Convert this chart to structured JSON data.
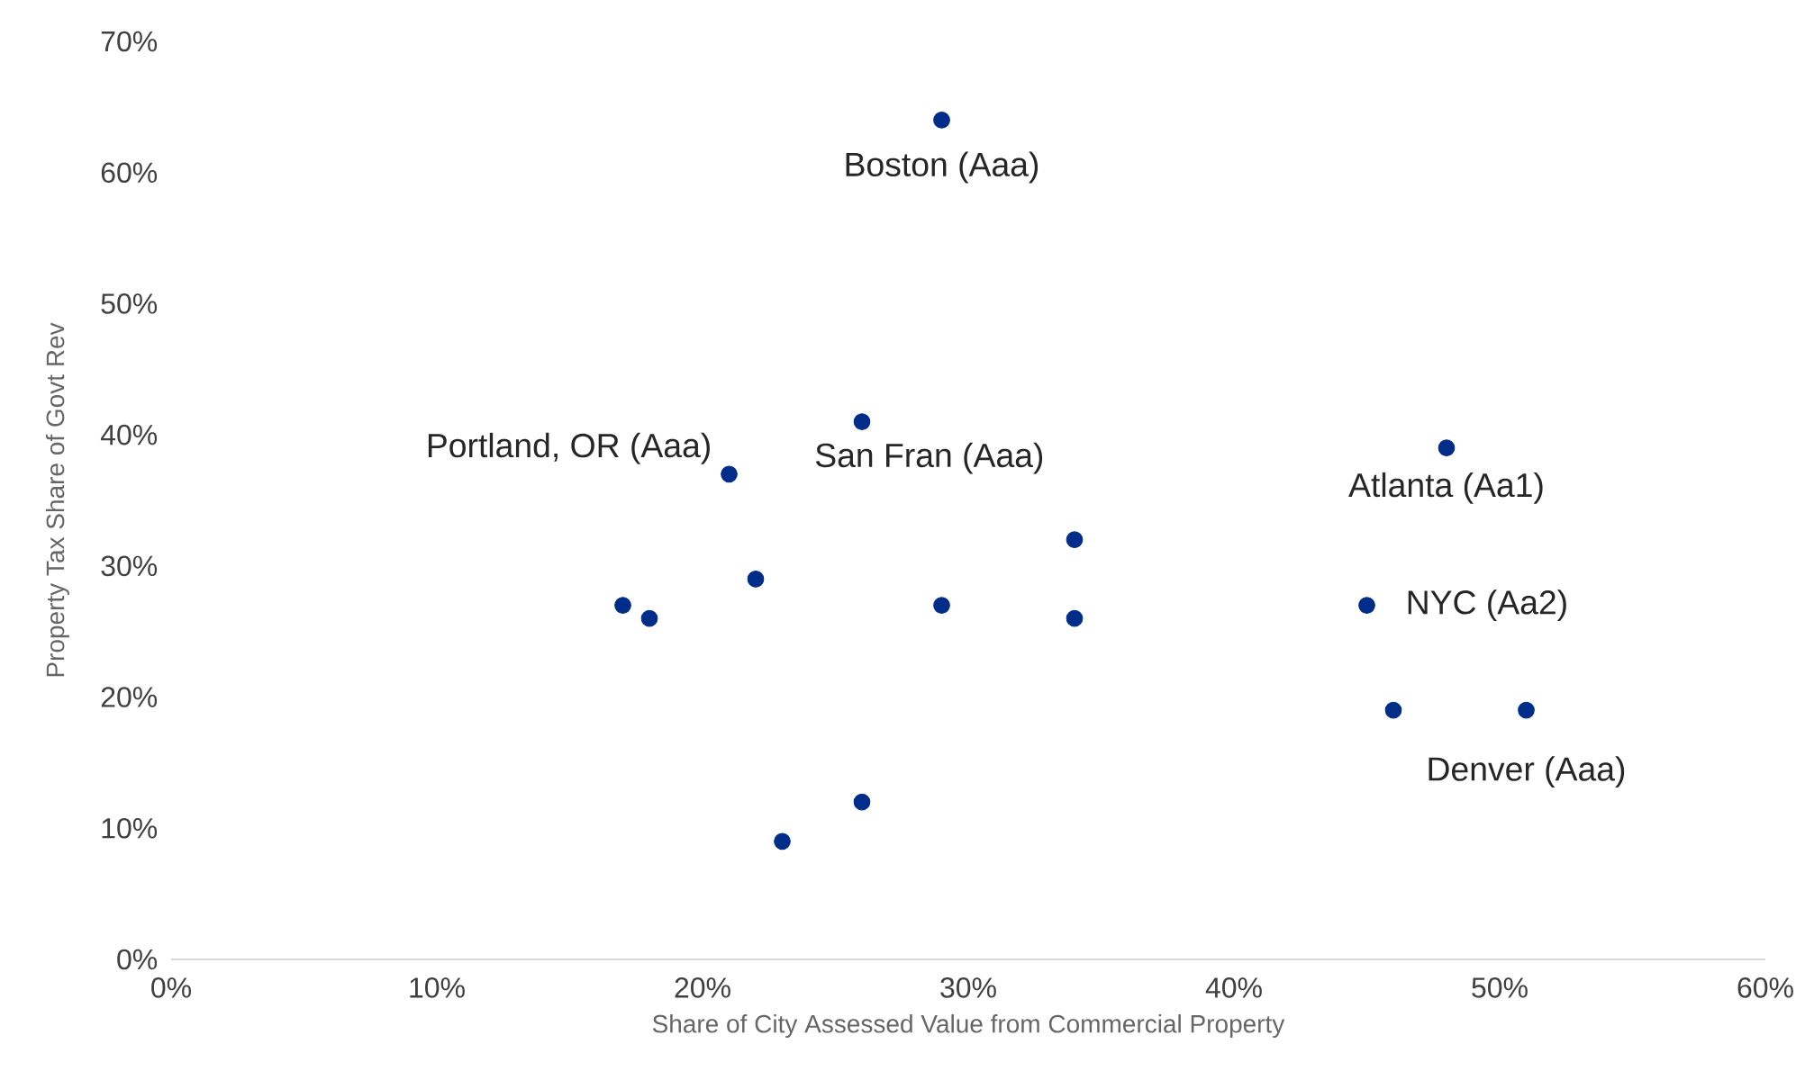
{
  "chart_data": {
    "type": "scatter",
    "xlabel": "Share of City Assessed Value from Commercial Property",
    "ylabel": "Property Tax Share of Govt Rev",
    "series": [
      {
        "color": "#002d8a",
        "x": [
          29,
          26,
          21,
          34,
          48,
          17,
          18,
          22,
          29,
          34,
          45,
          46,
          51,
          26,
          23
        ],
        "values": [
          64,
          41,
          37,
          32,
          39,
          27,
          26,
          29,
          27,
          26,
          27,
          19,
          19,
          12,
          9
        ]
      }
    ],
    "grid": false,
    "xlim": [
      0,
      60
    ],
    "xticks": [
      {
        "value": 0,
        "label": "0%"
      },
      {
        "value": 10,
        "label": "10%"
      },
      {
        "value": 20,
        "label": "20%"
      },
      {
        "value": 30,
        "label": "30%"
      },
      {
        "value": 40,
        "label": "40%"
      },
      {
        "value": 50,
        "label": "50%"
      },
      {
        "value": 60,
        "label": "60%"
      }
    ],
    "ylim": [
      0,
      70
    ],
    "yticks": [
      {
        "value": 0,
        "label": "0%"
      },
      {
        "value": 10,
        "label": "10%"
      },
      {
        "value": 20,
        "label": "20%"
      },
      {
        "value": 30,
        "label": "30%"
      },
      {
        "value": 40,
        "label": "40%"
      },
      {
        "value": 50,
        "label": "50%"
      },
      {
        "value": 60,
        "label": "60%"
      },
      {
        "value": 70,
        "label": "70%"
      }
    ],
    "annotations": [
      {
        "text": "Boston (Aaa)",
        "x": 29,
        "y": 64
      },
      {
        "text": "Portland, OR (Aaa)",
        "x": 21,
        "y": 37
      },
      {
        "text": "San Fran (Aaa)",
        "x": 26,
        "y": 41
      },
      {
        "text": "Atlanta (Aa1)",
        "x": 48,
        "y": 39
      },
      {
        "text": "NYC (Aa2)",
        "x": 45,
        "y": 27
      },
      {
        "text": "Denver (Aaa)",
        "x": 51,
        "y": 19
      }
    ]
  }
}
